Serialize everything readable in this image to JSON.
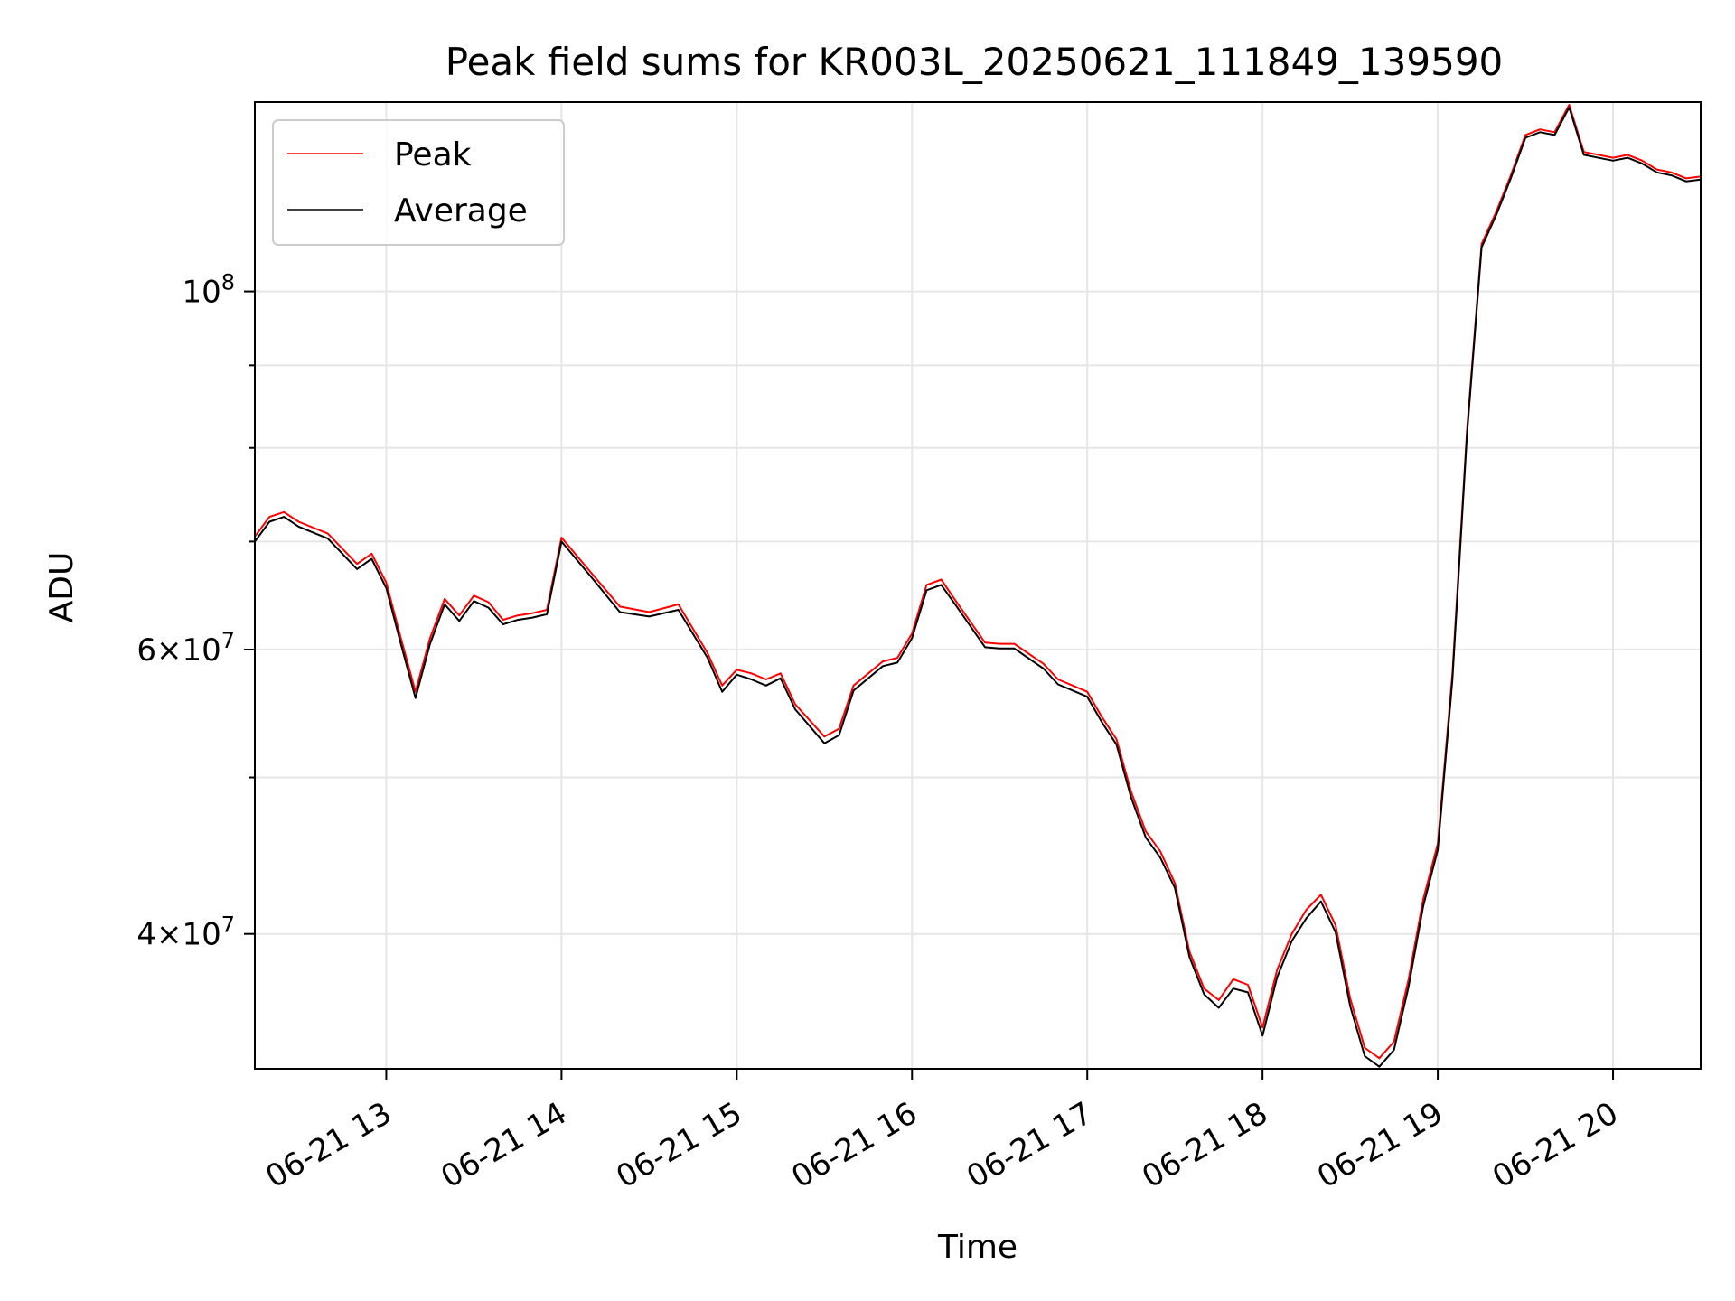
{
  "chart_data": {
    "type": "line",
    "title": "Peak field sums for KR003L_20250621_111849_139590",
    "xlabel": "Time",
    "ylabel": "ADU",
    "y_scale": "log",
    "ylim": [
      33000000,
      131000000
    ],
    "xlim": [
      "2025-06-21 12:15",
      "2025-06-21 20:30"
    ],
    "x_tick_labels": [
      "06-21 13",
      "06-21 14",
      "06-21 15",
      "06-21 16",
      "06-21 17",
      "06-21 18",
      "06-21 19",
      "06-21 20"
    ],
    "x_ticks": [
      "2025-06-21 13:00",
      "2025-06-21 14:00",
      "2025-06-21 15:00",
      "2025-06-21 16:00",
      "2025-06-21 17:00",
      "2025-06-21 18:00",
      "2025-06-21 19:00",
      "2025-06-21 20:00"
    ],
    "y_ticks_major": [
      {
        "value": 40000000,
        "mantissa": "4",
        "exponent": "7"
      },
      {
        "value": 60000000,
        "mantissa": "6",
        "exponent": "7"
      },
      {
        "value": 100000000,
        "mantissa": "",
        "exponent": "8"
      }
    ],
    "y_ticks_minor": [
      50000000,
      70000000,
      80000000,
      90000000
    ],
    "grid": true,
    "legend_position": "top-left",
    "x": [
      "2025-06-21 12:15",
      "2025-06-21 12:20",
      "2025-06-21 12:25",
      "2025-06-21 12:30",
      "2025-06-21 12:40",
      "2025-06-21 12:50",
      "2025-06-21 12:55",
      "2025-06-21 13:00",
      "2025-06-21 13:05",
      "2025-06-21 13:10",
      "2025-06-21 13:15",
      "2025-06-21 13:20",
      "2025-06-21 13:25",
      "2025-06-21 13:30",
      "2025-06-21 13:35",
      "2025-06-21 13:40",
      "2025-06-21 13:45",
      "2025-06-21 13:50",
      "2025-06-21 13:55",
      "2025-06-21 14:00",
      "2025-06-21 14:10",
      "2025-06-21 14:20",
      "2025-06-21 14:30",
      "2025-06-21 14:40",
      "2025-06-21 14:50",
      "2025-06-21 14:55",
      "2025-06-21 15:00",
      "2025-06-21 15:05",
      "2025-06-21 15:10",
      "2025-06-21 15:15",
      "2025-06-21 15:20",
      "2025-06-21 15:30",
      "2025-06-21 15:35",
      "2025-06-21 15:40",
      "2025-06-21 15:50",
      "2025-06-21 15:55",
      "2025-06-21 16:00",
      "2025-06-21 16:05",
      "2025-06-21 16:10",
      "2025-06-21 16:15",
      "2025-06-21 16:25",
      "2025-06-21 16:30",
      "2025-06-21 16:35",
      "2025-06-21 16:45",
      "2025-06-21 16:50",
      "2025-06-21 16:55",
      "2025-06-21 17:00",
      "2025-06-21 17:05",
      "2025-06-21 17:10",
      "2025-06-21 17:15",
      "2025-06-21 17:20",
      "2025-06-21 17:25",
      "2025-06-21 17:30",
      "2025-06-21 17:35",
      "2025-06-21 17:40",
      "2025-06-21 17:45",
      "2025-06-21 17:50",
      "2025-06-21 17:55",
      "2025-06-21 18:00",
      "2025-06-21 18:05",
      "2025-06-21 18:10",
      "2025-06-21 18:15",
      "2025-06-21 18:20",
      "2025-06-21 18:25",
      "2025-06-21 18:30",
      "2025-06-21 18:35",
      "2025-06-21 18:40",
      "2025-06-21 18:45",
      "2025-06-21 18:50",
      "2025-06-21 18:55",
      "2025-06-21 19:00",
      "2025-06-21 19:05",
      "2025-06-21 19:10",
      "2025-06-21 19:15",
      "2025-06-21 19:20",
      "2025-06-21 19:25",
      "2025-06-21 19:30",
      "2025-06-21 19:35",
      "2025-06-21 19:40",
      "2025-06-21 19:45",
      "2025-06-21 19:50",
      "2025-06-21 20:00",
      "2025-06-21 20:05",
      "2025-06-21 20:10",
      "2025-06-21 20:15",
      "2025-06-21 20:20",
      "2025-06-21 20:25",
      "2025-06-21 20:30"
    ],
    "series": [
      {
        "name": "Peak",
        "color": "#ff0000",
        "values": [
          70500000,
          72500000,
          73000000,
          72000000,
          70800000,
          67800000,
          68800000,
          66000000,
          61000000,
          56500000,
          61000000,
          64500000,
          63000000,
          64800000,
          64200000,
          62600000,
          63000000,
          63200000,
          63500000,
          70400000,
          67000000,
          63800000,
          63300000,
          64000000,
          59700000,
          57000000,
          58300000,
          58000000,
          57500000,
          58000000,
          55500000,
          53000000,
          53600000,
          57000000,
          59000000,
          59300000,
          61400000,
          65800000,
          66300000,
          64300000,
          60600000,
          60500000,
          60500000,
          58800000,
          57500000,
          57000000,
          56500000,
          54500000,
          52800000,
          49000000,
          46300000,
          45000000,
          43000000,
          39000000,
          37000000,
          36400000,
          37500000,
          37200000,
          35000000,
          38000000,
          40000000,
          41400000,
          42300000,
          40500000,
          36500000,
          34000000,
          33500000,
          34300000,
          37500000,
          42000000,
          45500000,
          58000000,
          82000000,
          107000000,
          112000000,
          118000000,
          125000000,
          126000000,
          125500000,
          130500000,
          122000000,
          121000000,
          121500000,
          120500000,
          119000000,
          118500000,
          117500000,
          117800000
        ]
      },
      {
        "name": "Average",
        "color": "#000000",
        "values": [
          70000000,
          72000000,
          72500000,
          71500000,
          70300000,
          67300000,
          68300000,
          65500000,
          60500000,
          56000000,
          60500000,
          64000000,
          62500000,
          64300000,
          63700000,
          62200000,
          62600000,
          62800000,
          63100000,
          70000000,
          66600000,
          63300000,
          62900000,
          63500000,
          59300000,
          56500000,
          57900000,
          57500000,
          57000000,
          57600000,
          55100000,
          52500000,
          53100000,
          56600000,
          58600000,
          58900000,
          61000000,
          65300000,
          65800000,
          63900000,
          60200000,
          60100000,
          60100000,
          58400000,
          57100000,
          56600000,
          56100000,
          54100000,
          52400000,
          48600000,
          45900000,
          44600000,
          42700000,
          38700000,
          36700000,
          36000000,
          37000000,
          36800000,
          34600000,
          37600000,
          39600000,
          40900000,
          41900000,
          40100000,
          36100000,
          33600000,
          33100000,
          33900000,
          37100000,
          41600000,
          45100000,
          57500000,
          81500000,
          106500000,
          111500000,
          117500000,
          124500000,
          125500000,
          125000000,
          130000000,
          121500000,
          120500000,
          121000000,
          120000000,
          118500000,
          118000000,
          117000000,
          117300000
        ]
      }
    ]
  }
}
